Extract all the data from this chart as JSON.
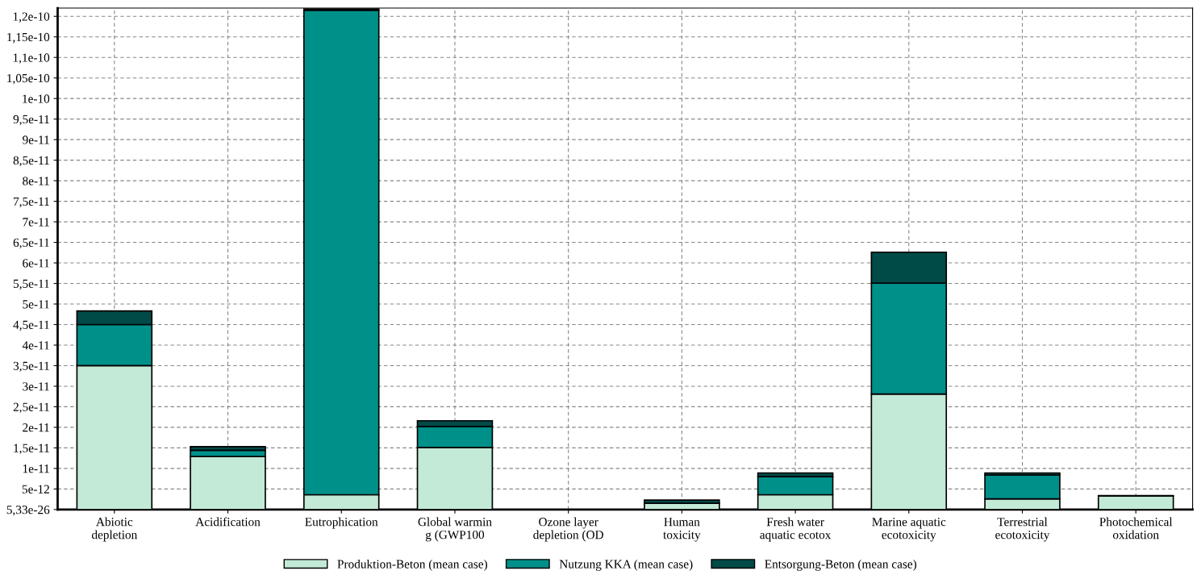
{
  "chart_data": {
    "type": "bar",
    "stacked": true,
    "categories": [
      "Abiotic\ndepletion",
      "Acidification",
      "Eutrophication",
      "Global warmin\ng (GWP100",
      "Ozone layer\ndepletion (OD",
      "Human\ntoxicity",
      "Fresh water\naquatic ecotox",
      "Marine aquatic\necotoxicity",
      "Terrestrial\necotoxicity",
      "Photochemical\noxidation"
    ],
    "series": [
      {
        "name": "Produktion-Beton (mean case)",
        "color": "#c2ead6",
        "values": [
          3.5e-11,
          1.29e-11,
          3.6e-12,
          1.51e-11,
          null,
          1.5e-12,
          3.6e-12,
          2.81e-11,
          2.6e-12,
          3.3e-12
        ]
      },
      {
        "name": "Nutzung KKA (mean case)",
        "color": "#00908a",
        "values": [
          1e-11,
          1.5e-12,
          1.179e-10,
          5.1e-12,
          null,
          null,
          4.4e-12,
          2.7e-11,
          5.8e-12,
          1e-13
        ]
      },
      {
        "name": "Entsorgung-Beton (mean case)",
        "color": "#004a48",
        "values": [
          3.3e-12,
          9e-13,
          3e-13,
          1.4e-12,
          null,
          8e-13,
          9e-13,
          7.5e-12,
          5e-13,
          null
        ]
      }
    ],
    "ylim": [
      5.33e-26,
      1.22e-10
    ],
    "yticks": [
      {
        "value": 5.33e-26,
        "label": "5,33e-26"
      },
      {
        "value": 5e-12,
        "label": "5e-12"
      },
      {
        "value": 1e-11,
        "label": "1e-11"
      },
      {
        "value": 1.5e-11,
        "label": "1,5e-11"
      },
      {
        "value": 2e-11,
        "label": "2e-11"
      },
      {
        "value": 2.5e-11,
        "label": "2,5e-11"
      },
      {
        "value": 3e-11,
        "label": "3e-11"
      },
      {
        "value": 3.5e-11,
        "label": "3,5e-11"
      },
      {
        "value": 4e-11,
        "label": "4e-11"
      },
      {
        "value": 4.5e-11,
        "label": "4,5e-11"
      },
      {
        "value": 5e-11,
        "label": "5e-11"
      },
      {
        "value": 5.5e-11,
        "label": "5,5e-11"
      },
      {
        "value": 6e-11,
        "label": "6e-11"
      },
      {
        "value": 6.5e-11,
        "label": "6,5e-11"
      },
      {
        "value": 7e-11,
        "label": "7e-11"
      },
      {
        "value": 7.5e-11,
        "label": "7,5e-11"
      },
      {
        "value": 8e-11,
        "label": "8e-11"
      },
      {
        "value": 8.5e-11,
        "label": "8,5e-11"
      },
      {
        "value": 9e-11,
        "label": "9e-11"
      },
      {
        "value": 9.5e-11,
        "label": "9,5e-11"
      },
      {
        "value": 1e-10,
        "label": "1e-10"
      },
      {
        "value": 1.05e-10,
        "label": "1,05e-10"
      },
      {
        "value": 1.1e-10,
        "label": "1,1e-10"
      },
      {
        "value": 1.15e-10,
        "label": "1,15e-10"
      },
      {
        "value": 1.2e-10,
        "label": "1,2e-10"
      }
    ],
    "grid": true,
    "legend": "bottom"
  }
}
